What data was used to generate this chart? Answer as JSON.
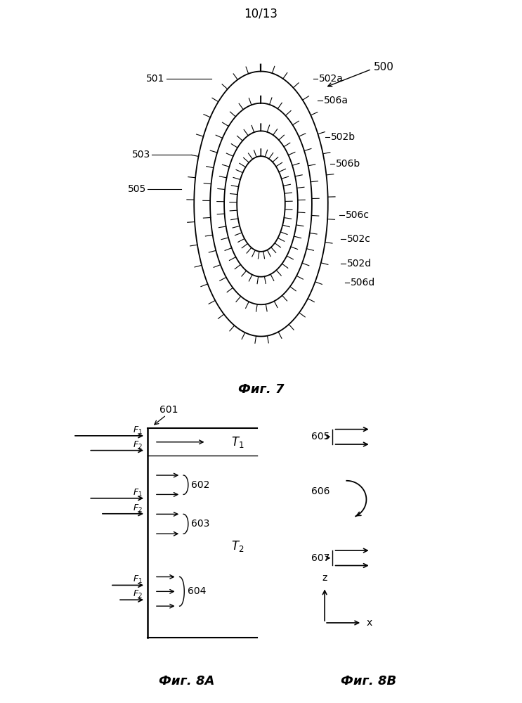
{
  "page_label": "10/13",
  "fig7_label": "Фиг. 7",
  "fig8a_label": "Фиг. 8А",
  "fig8b_label": "Фиг. 8В",
  "fig7_ref_label": "500",
  "ellipse_scales": [
    1.0,
    0.76,
    0.55,
    0.36
  ],
  "ellipse_a": 0.92,
  "ellipse_b": 1.82,
  "background": "#ffffff",
  "text_color": "#000000"
}
